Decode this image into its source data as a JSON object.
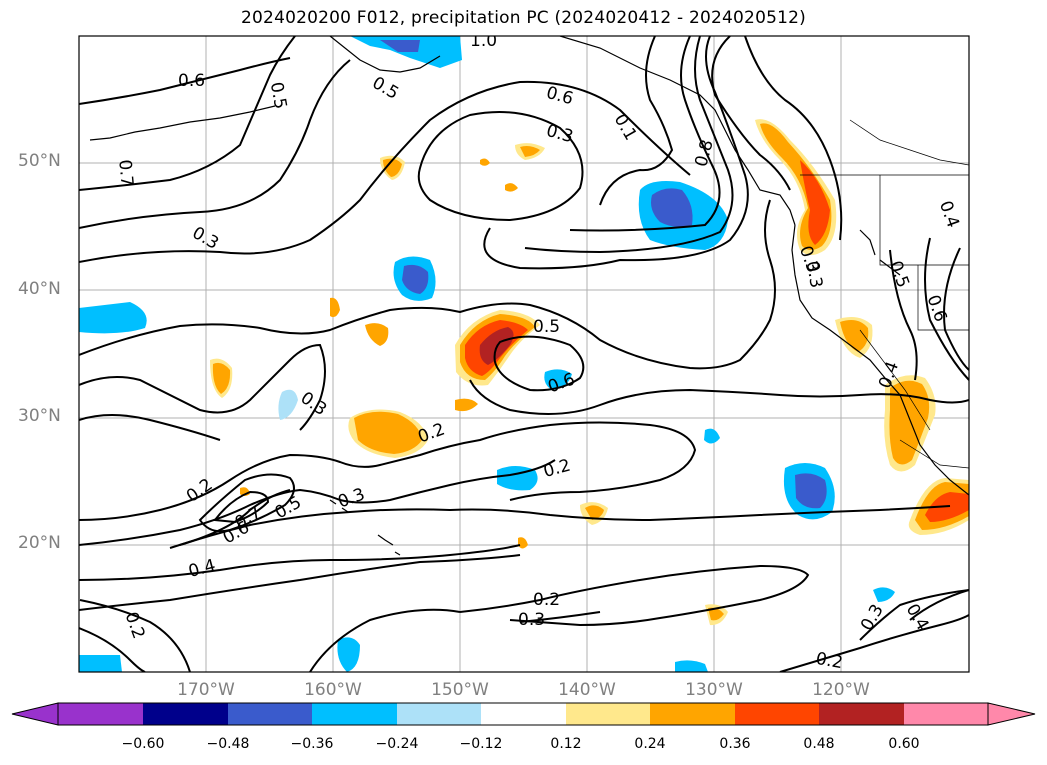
{
  "title": "2024020200 F012, precipitation PC (2024020412 - 2024020512)",
  "lat_labels": [
    "50°N",
    "40°N",
    "30°N",
    "20°N"
  ],
  "lon_labels": [
    "170°W",
    "160°W",
    "150°W",
    "140°W",
    "130°W",
    "120°W"
  ],
  "contour_labels": [
    "1.0",
    "0.6",
    "0.5",
    "0.7",
    "0.5",
    "0.6",
    "0.3",
    "0.1",
    "0.8",
    "0.4",
    "0.5",
    "0.3",
    "0.5",
    "0.6",
    "0.6",
    "0.3",
    "0.3",
    "0.2",
    "0.7",
    "0.6",
    "0.5",
    "0.3",
    "0.4",
    "0.2",
    "0.2",
    "0.3",
    "0.2",
    "0.2",
    "0.3",
    "0.4",
    "0.4",
    "0.2",
    "0.3"
  ],
  "colorbar": {
    "ticks": [
      "−0.60",
      "−0.48",
      "−0.36",
      "−0.24",
      "−0.12",
      "0.12",
      "0.24",
      "0.36",
      "0.48",
      "0.60"
    ],
    "colors": [
      "#9932CC",
      "#00008B",
      "#3A5BCC",
      "#00BFFF",
      "#ADE1F8",
      "#FFFFFF",
      "#FFE88C",
      "#FFA500",
      "#FF4500",
      "#B22222",
      "#FF88AA"
    ]
  }
}
